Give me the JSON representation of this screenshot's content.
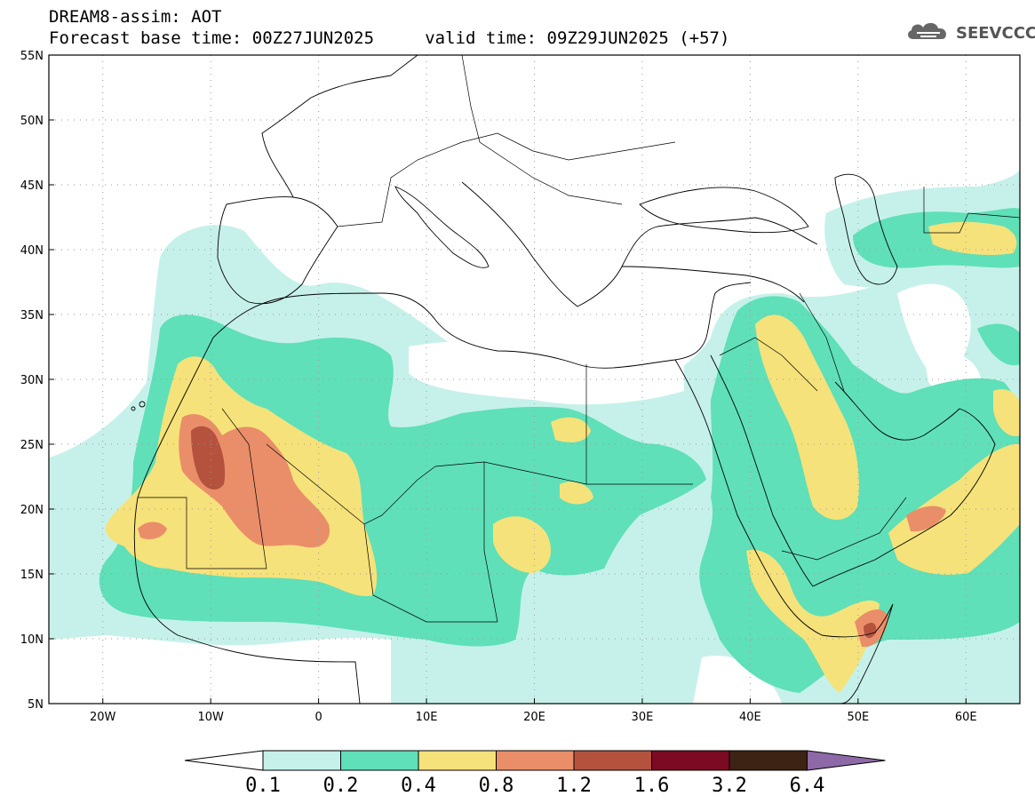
{
  "header": {
    "line1": "DREAM8-assim: AOT",
    "line2": "Forecast base time: 00Z27JUN2025     valid time: 09Z29JUN2025 (+57)"
  },
  "logo": {
    "text": "SEEVCCC",
    "icon": "cloud-icon"
  },
  "map": {
    "projection": "lat-lon",
    "lon_range": [
      -25,
      65
    ],
    "lat_range": [
      5,
      55
    ],
    "grid": "dotted",
    "lon_ticks": [
      {
        "value": -20,
        "label": "20W"
      },
      {
        "value": -10,
        "label": "10W"
      },
      {
        "value": 0,
        "label": "0"
      },
      {
        "value": 10,
        "label": "10E"
      },
      {
        "value": 20,
        "label": "20E"
      },
      {
        "value": 30,
        "label": "30E"
      },
      {
        "value": 40,
        "label": "40E"
      },
      {
        "value": 50,
        "label": "50E"
      },
      {
        "value": 60,
        "label": "60E"
      }
    ],
    "lat_ticks": [
      {
        "value": 5,
        "label": "5N"
      },
      {
        "value": 10,
        "label": "10N"
      },
      {
        "value": 15,
        "label": "15N"
      },
      {
        "value": 20,
        "label": "20N"
      },
      {
        "value": 25,
        "label": "25N"
      },
      {
        "value": 30,
        "label": "30N"
      },
      {
        "value": 35,
        "label": "35N"
      },
      {
        "value": 40,
        "label": "40N"
      },
      {
        "value": 45,
        "label": "45N"
      },
      {
        "value": 50,
        "label": "50N"
      },
      {
        "value": 55,
        "label": "55N"
      }
    ]
  },
  "colorbar": {
    "levels": [
      "0.1",
      "0.2",
      "0.4",
      "0.8",
      "1.2",
      "1.6",
      "3.2",
      "6.4"
    ],
    "colors": [
      "#c6f1ea",
      "#5fe0b8",
      "#f6e27a",
      "#ea8e69",
      "#b4523e",
      "#7c0a22",
      "#3d2314"
    ],
    "below_color": "#ffffff",
    "above_color": "#8e69a8"
  },
  "aot_colors": {
    "0.1": "#c6f1ea",
    "0.2": "#5fe0b8",
    "0.4": "#f6e27a",
    "0.8": "#ea8e69",
    "1.2": "#b4523e",
    "1.6": "#7c0a22"
  }
}
